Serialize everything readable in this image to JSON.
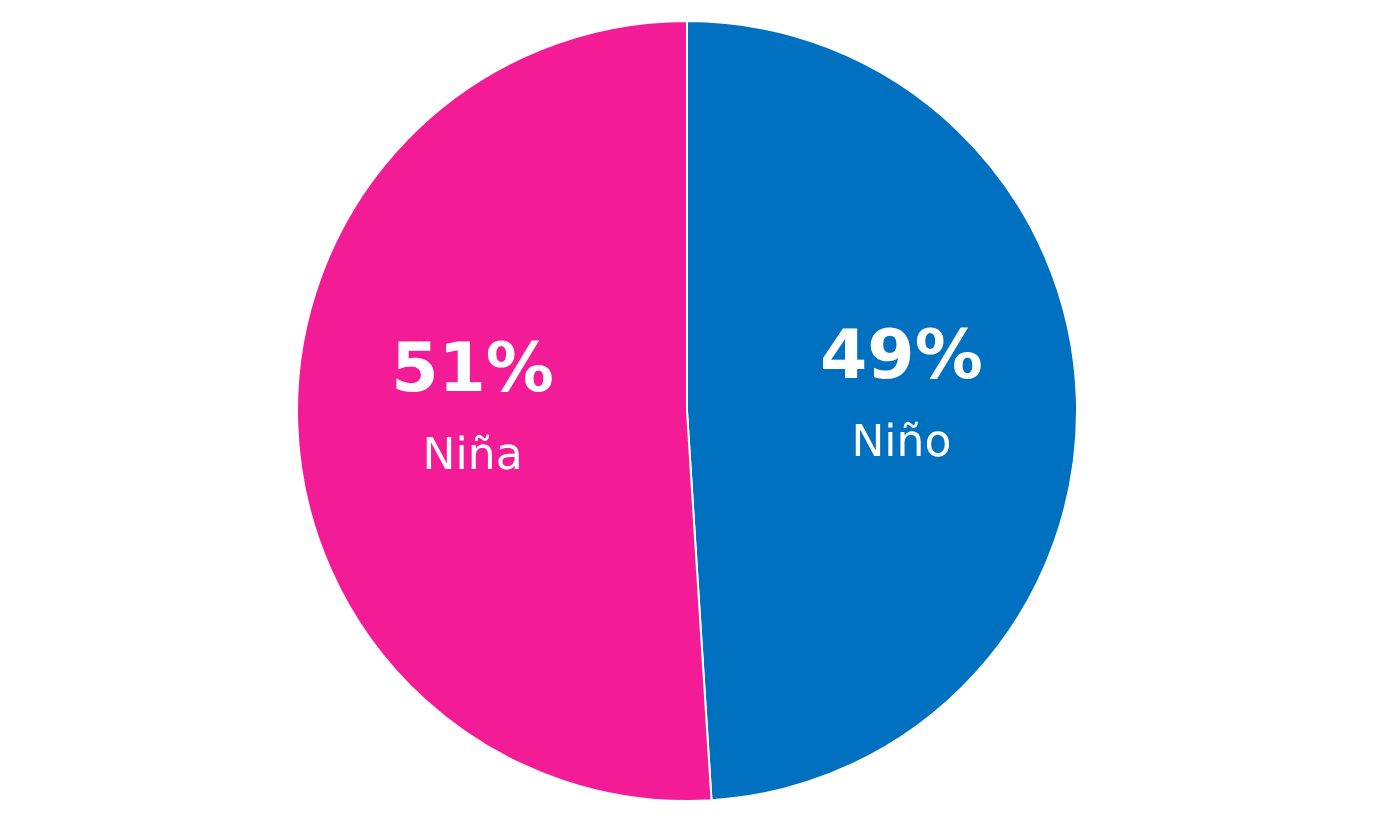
{
  "chart_data": {
    "type": "pie",
    "categories": [
      "Niño",
      "Niña"
    ],
    "values": [
      49,
      51
    ],
    "colors": [
      "#0070c0",
      "#f31b96"
    ],
    "value_labels": [
      "49%",
      "51%"
    ],
    "legend": false
  }
}
